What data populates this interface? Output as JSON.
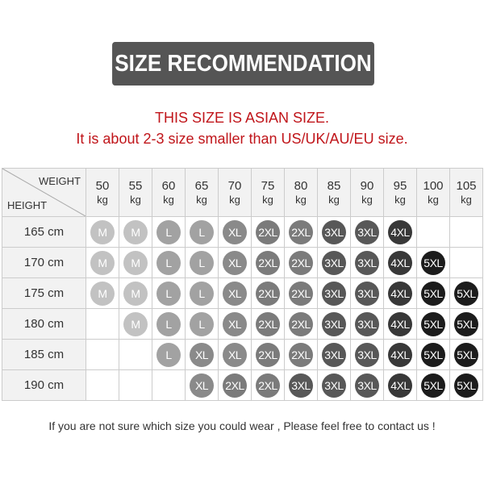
{
  "title": "SIZE RECOMMENDATION",
  "notice1": "THIS SIZE IS ASIAN SIZE.",
  "notice2": "It is about 2-3 size smaller than US/UK/AU/EU size.",
  "table": {
    "weight_label": "WEIGHT",
    "height_label": "HEIGHT",
    "unit": "kg",
    "weights": [
      "50",
      "55",
      "60",
      "65",
      "70",
      "75",
      "80",
      "85",
      "90",
      "95",
      "100",
      "105"
    ],
    "rows": [
      {
        "height": "165 cm",
        "sizes": [
          "M",
          "M",
          "L",
          "L",
          "XL",
          "2XL",
          "2XL",
          "3XL",
          "3XL",
          "4XL",
          "",
          ""
        ]
      },
      {
        "height": "170 cm",
        "sizes": [
          "M",
          "M",
          "L",
          "L",
          "XL",
          "2XL",
          "2XL",
          "3XL",
          "3XL",
          "4XL",
          "5XL",
          ""
        ]
      },
      {
        "height": "175 cm",
        "sizes": [
          "M",
          "M",
          "L",
          "L",
          "XL",
          "2XL",
          "2XL",
          "3XL",
          "3XL",
          "4XL",
          "5XL",
          "5XL"
        ]
      },
      {
        "height": "180 cm",
        "sizes": [
          "",
          "M",
          "L",
          "L",
          "XL",
          "2XL",
          "2XL",
          "3XL",
          "3XL",
          "4XL",
          "5XL",
          "5XL"
        ]
      },
      {
        "height": "185 cm",
        "sizes": [
          "",
          "",
          "L",
          "XL",
          "XL",
          "2XL",
          "2XL",
          "3XL",
          "3XL",
          "4XL",
          "5XL",
          "5XL"
        ]
      },
      {
        "height": "190 cm",
        "sizes": [
          "",
          "",
          "",
          "XL",
          "2XL",
          "2XL",
          "3XL",
          "3XL",
          "3XL",
          "4XL",
          "5XL",
          "5XL"
        ]
      }
    ]
  },
  "size_colors": {
    "M": "#c2c2c2",
    "L": "#a2a2a2",
    "XL": "#8a8a8a",
    "2XL": "#7b7b7b",
    "3XL": "#585858",
    "4XL": "#383838",
    "5XL": "#1c1c1c"
  },
  "footer": "If you are not sure which size you could wear , Please feel free to contact us !"
}
